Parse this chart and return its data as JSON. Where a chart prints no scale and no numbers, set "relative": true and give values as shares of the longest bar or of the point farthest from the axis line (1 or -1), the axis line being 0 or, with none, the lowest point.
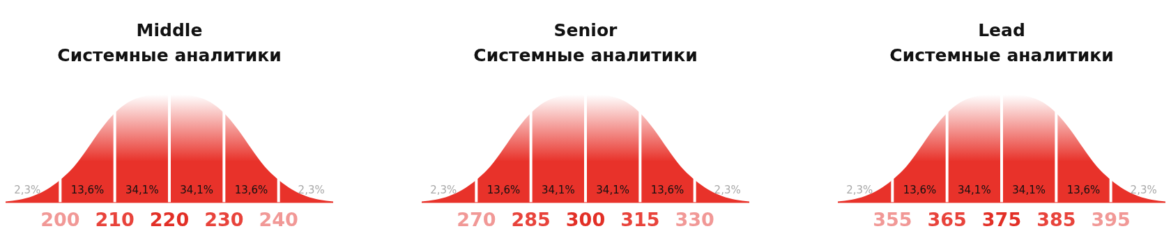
{
  "chart_data": [
    {
      "type": "area",
      "relative": true,
      "title": "Middle",
      "subtitle": "Системные аналитики",
      "color": "#e8322a",
      "xlim": [
        190,
        250
      ],
      "xticks": [
        200,
        210,
        220,
        230,
        240
      ],
      "x": [
        190,
        195,
        197.5,
        200,
        202.5,
        205,
        207.5,
        210,
        212.5,
        215,
        217.5,
        220,
        222.5,
        225,
        227.5,
        230,
        232.5,
        235,
        237.5,
        240,
        242.5,
        245,
        250
      ],
      "values": [
        0.01,
        0.06,
        0.12,
        0.21,
        0.33,
        0.5,
        0.68,
        0.83,
        0.93,
        0.98,
        1,
        1,
        1,
        0.98,
        0.93,
        0.83,
        0.68,
        0.5,
        0.33,
        0.21,
        0.12,
        0.06,
        0.01
      ],
      "ref_lines": [
        {
          "axis": "x",
          "value": 200,
          "color": "#ffffff"
        },
        {
          "axis": "x",
          "value": 210,
          "color": "#ffffff"
        },
        {
          "axis": "x",
          "value": 220,
          "color": "#ffffff"
        },
        {
          "axis": "x",
          "value": 230,
          "color": "#ffffff"
        },
        {
          "axis": "x",
          "value": 240,
          "color": "#ffffff"
        }
      ],
      "annotations": [
        "2,3%",
        "13,6%",
        "34,1%",
        "34,1%",
        "13,6%",
        "2,3%"
      ]
    },
    {
      "type": "area",
      "relative": true,
      "title": "Senior",
      "subtitle": "Системные аналитики",
      "color": "#e8322a",
      "xlim": [
        255,
        345
      ],
      "xticks": [
        270,
        285,
        300,
        315,
        330
      ],
      "x": [
        255,
        262.5,
        266.25,
        270,
        273.75,
        277.5,
        281.25,
        285,
        288.75,
        292.5,
        296.25,
        300,
        303.75,
        307.5,
        311.25,
        315,
        318.75,
        322.5,
        326.25,
        330,
        333.75,
        337.5,
        345
      ],
      "values": [
        0.01,
        0.06,
        0.12,
        0.21,
        0.33,
        0.5,
        0.68,
        0.83,
        0.93,
        0.98,
        1,
        1,
        1,
        0.98,
        0.93,
        0.83,
        0.68,
        0.5,
        0.33,
        0.21,
        0.12,
        0.06,
        0.01
      ],
      "ref_lines": [
        {
          "axis": "x",
          "value": 270,
          "color": "#ffffff"
        },
        {
          "axis": "x",
          "value": 285,
          "color": "#ffffff"
        },
        {
          "axis": "x",
          "value": 300,
          "color": "#ffffff"
        },
        {
          "axis": "x",
          "value": 315,
          "color": "#ffffff"
        },
        {
          "axis": "x",
          "value": 330,
          "color": "#ffffff"
        }
      ],
      "annotations": [
        "2,3%",
        "13,6%",
        "34,1%",
        "34,1%",
        "13,6%",
        "2,3%"
      ]
    },
    {
      "type": "area",
      "relative": true,
      "title": "Lead",
      "subtitle": "Системные аналитики",
      "color": "#e8322a",
      "xlim": [
        345,
        405
      ],
      "xticks": [
        355,
        365,
        375,
        385,
        395
      ],
      "x": [
        345,
        350,
        352.5,
        355,
        357.5,
        360,
        362.5,
        365,
        367.5,
        370,
        372.5,
        375,
        377.5,
        380,
        382.5,
        385,
        387.5,
        390,
        392.5,
        395,
        397.5,
        400,
        405
      ],
      "values": [
        0.01,
        0.06,
        0.12,
        0.21,
        0.33,
        0.5,
        0.68,
        0.83,
        0.93,
        0.98,
        1,
        1,
        1,
        0.98,
        0.93,
        0.83,
        0.68,
        0.5,
        0.33,
        0.21,
        0.12,
        0.06,
        0.01
      ],
      "ref_lines": [
        {
          "axis": "x",
          "value": 355,
          "color": "#ffffff"
        },
        {
          "axis": "x",
          "value": 365,
          "color": "#ffffff"
        },
        {
          "axis": "x",
          "value": 375,
          "color": "#ffffff"
        },
        {
          "axis": "x",
          "value": 385,
          "color": "#ffffff"
        },
        {
          "axis": "x",
          "value": 395,
          "color": "#ffffff"
        }
      ],
      "annotations": [
        "2,3%",
        "13,6%",
        "34,1%",
        "34,1%",
        "13,6%",
        "2,3%"
      ]
    }
  ]
}
